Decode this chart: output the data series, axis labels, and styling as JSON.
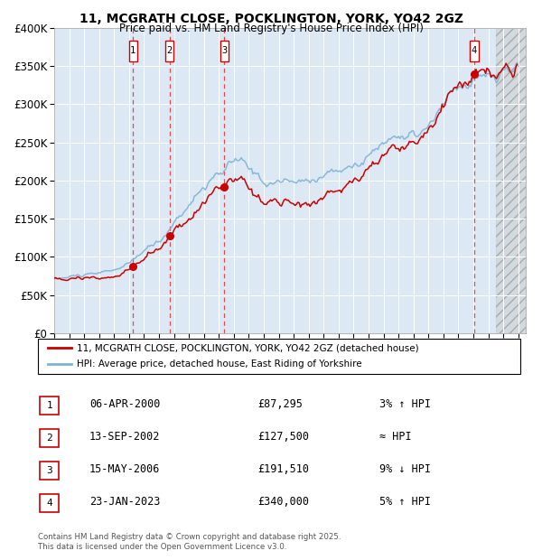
{
  "title": "11, MCGRATH CLOSE, POCKLINGTON, YORK, YO42 2GZ",
  "subtitle": "Price paid vs. HM Land Registry's House Price Index (HPI)",
  "ylim": [
    0,
    400000
  ],
  "yticks": [
    0,
    50000,
    100000,
    150000,
    200000,
    250000,
    300000,
    350000,
    400000
  ],
  "ytick_labels": [
    "£0",
    "£50K",
    "£100K",
    "£150K",
    "£200K",
    "£250K",
    "£300K",
    "£350K",
    "£400K"
  ],
  "xlim_start": 1995.0,
  "xlim_end": 2026.5,
  "plot_bg_color": "#dce9f5",
  "grid_color": "#ffffff",
  "hpi_line_color": "#7fb3d3",
  "sale_line_color": "#cc0000",
  "sale_dot_color": "#cc0000",
  "dashed_line_color": "#dd3333",
  "number_box_color": "#cc0000",
  "transactions": [
    {
      "num": 1,
      "date_str": "06-APR-2000",
      "date_x": 2000.27,
      "price": 87295,
      "pct": "3%",
      "dir": "↑",
      "hpi_rel": "HPI"
    },
    {
      "num": 2,
      "date_str": "13-SEP-2002",
      "date_x": 2002.71,
      "price": 127500,
      "pct": "≈",
      "dir": "",
      "hpi_rel": "HPI"
    },
    {
      "num": 3,
      "date_str": "15-MAY-2006",
      "date_x": 2006.37,
      "price": 191510,
      "pct": "9%",
      "dir": "↓",
      "hpi_rel": "HPI"
    },
    {
      "num": 4,
      "date_str": "23-JAN-2023",
      "date_x": 2023.06,
      "price": 340000,
      "pct": "5%",
      "dir": "↑",
      "hpi_rel": "HPI"
    }
  ],
  "legend_sale_label": "11, MCGRATH CLOSE, POCKLINGTON, YORK, YO42 2GZ (detached house)",
  "legend_hpi_label": "HPI: Average price, detached house, East Riding of Yorkshire",
  "footnote": "Contains HM Land Registry data © Crown copyright and database right 2025.\nThis data is licensed under the Open Government Licence v3.0.",
  "future_x": 2024.5,
  "hpi_x": [
    1995,
    1996,
    1997,
    1998,
    1999,
    2000,
    2001,
    2002,
    2003,
    2004,
    2005,
    2006,
    2007,
    2007.5,
    2008,
    2009,
    2010,
    2011,
    2012,
    2013,
    2014,
    2015,
    2016,
    2017,
    2018,
    2019,
    2020,
    2021,
    2021.5,
    2022,
    2023,
    2024,
    2025,
    2026
  ],
  "hpi_y": [
    72000,
    74000,
    76000,
    79000,
    83000,
    92000,
    108000,
    120000,
    145000,
    168000,
    190000,
    208000,
    225000,
    230000,
    215000,
    196000,
    200000,
    198000,
    200000,
    205000,
    212000,
    220000,
    233000,
    248000,
    258000,
    265000,
    272000,
    300000,
    318000,
    322000,
    333000,
    340000,
    345000,
    350000
  ],
  "sale_x": [
    1995,
    2000.27,
    2002.71,
    2006.37,
    2023.06,
    2026
  ],
  "sale_y": [
    72000,
    87295,
    127500,
    191510,
    340000,
    352000
  ]
}
